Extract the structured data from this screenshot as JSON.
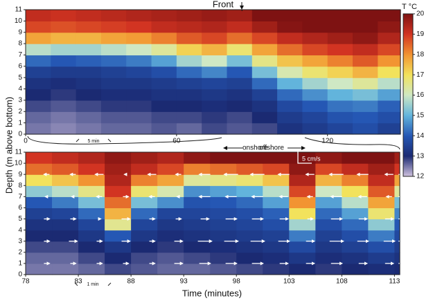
{
  "chart_data": [
    {
      "type": "heatmap",
      "annotations": [
        {
          "text": "Front",
          "x": 86
        },
        {
          "text": "5 min"
        }
      ],
      "xlim": [
        0,
        149
      ],
      "xticks": [
        0,
        60,
        120
      ],
      "ylim": [
        0,
        11
      ],
      "yticks": [
        0,
        1,
        2,
        3,
        4,
        5,
        6,
        7,
        8,
        9,
        10,
        11
      ],
      "x_edges": [
        0,
        10,
        20,
        30,
        40,
        50,
        60,
        70,
        80,
        90,
        100,
        110,
        120,
        130,
        140,
        149
      ],
      "y_edges": [
        0,
        1,
        2,
        3,
        4,
        5,
        6,
        7,
        8,
        9,
        10,
        11
      ],
      "colorbar": {
        "label": "T °C",
        "ticks": [
          12,
          13,
          14,
          15,
          16,
          17,
          18,
          19,
          20
        ],
        "colors": [
          "#d2c4e0",
          "#1b2a72",
          "#2557b4",
          "#62b4dc",
          "#cfe8c4",
          "#f2e25c",
          "#f29432",
          "#d23422",
          "#7e1212"
        ]
      },
      "z": [
        [
          12.5,
          12.4,
          12.5,
          12.6,
          12.6,
          12.7,
          12.6,
          12.8,
          12.7,
          12.8,
          13.2,
          13.4,
          13.6,
          13.8,
          13.5
        ],
        [
          12.6,
          12.5,
          12.6,
          12.7,
          12.7,
          12.8,
          12.8,
          12.9,
          12.8,
          13.0,
          13.4,
          13.6,
          13.9,
          14.0,
          13.8
        ],
        [
          12.8,
          12.7,
          12.8,
          12.9,
          12.9,
          13.0,
          13.0,
          13.1,
          13.0,
          13.2,
          13.7,
          14.0,
          14.3,
          14.4,
          14.1
        ],
        [
          13.0,
          12.9,
          13.0,
          13.1,
          13.1,
          13.2,
          13.2,
          13.3,
          13.2,
          13.5,
          14.2,
          14.6,
          15.0,
          15.2,
          14.8
        ],
        [
          13.2,
          13.1,
          13.2,
          13.3,
          13.3,
          13.4,
          13.5,
          13.6,
          13.5,
          14.2,
          15.0,
          15.6,
          16.0,
          16.4,
          15.8
        ],
        [
          13.5,
          13.4,
          13.4,
          13.5,
          13.6,
          13.8,
          14.2,
          14.5,
          14.0,
          15.2,
          16.2,
          16.8,
          17.2,
          17.6,
          17.0
        ],
        [
          14.2,
          14.0,
          14.1,
          14.2,
          14.4,
          14.8,
          15.6,
          16.0,
          15.2,
          16.6,
          17.4,
          17.8,
          18.2,
          18.6,
          18.0
        ],
        [
          15.8,
          15.6,
          15.6,
          15.8,
          16.0,
          16.4,
          17.2,
          17.6,
          16.8,
          17.8,
          18.4,
          18.8,
          19.0,
          19.2,
          18.8
        ],
        [
          17.8,
          17.6,
          17.6,
          17.8,
          17.9,
          18.2,
          18.6,
          18.8,
          18.4,
          18.8,
          19.2,
          19.4,
          19.6,
          19.8,
          19.4
        ],
        [
          18.8,
          18.7,
          18.8,
          18.9,
          19.0,
          19.2,
          19.3,
          19.4,
          19.2,
          19.6,
          19.9,
          20.0,
          20.0,
          20.1,
          19.8
        ],
        [
          19.2,
          19.1,
          19.2,
          19.3,
          19.4,
          19.5,
          19.6,
          19.7,
          19.6,
          20.0,
          20.3,
          20.4,
          20.2,
          20.5,
          20.2
        ]
      ]
    },
    {
      "type": "heatmap",
      "ylabel": "Depth (m above bottom)",
      "xlabel": "Time (minutes)",
      "annotations": [
        {
          "text": "onshore"
        },
        {
          "text": "offshore"
        },
        {
          "text": "1 min"
        }
      ],
      "scale_bar": {
        "label": "5 cm/s",
        "value": 5
      },
      "xlim": [
        78,
        113.5
      ],
      "xticks": [
        78,
        83,
        88,
        93,
        98,
        103,
        108,
        113
      ],
      "ylim": [
        0,
        11
      ],
      "yticks": [
        0,
        1,
        2,
        3,
        4,
        5,
        6,
        7,
        8,
        9,
        10,
        11
      ],
      "x_edges": [
        78,
        80.5,
        83,
        85.5,
        88,
        90.5,
        93,
        95.5,
        98,
        100.5,
        103,
        105.5,
        108,
        110.5,
        113,
        113.5
      ],
      "y_edges": [
        0,
        1,
        2,
        3,
        4,
        5,
        6,
        7,
        8,
        9,
        10,
        11
      ],
      "z": [
        [
          12.5,
          12.5,
          12.6,
          12.8,
          12.7,
          12.6,
          12.6,
          12.7,
          12.8,
          12.9,
          13.0,
          12.9,
          13.0,
          13.1,
          13.0
        ],
        [
          12.6,
          12.6,
          12.8,
          13.0,
          12.8,
          12.7,
          12.8,
          12.9,
          13.0,
          13.1,
          13.3,
          13.1,
          13.2,
          13.4,
          13.2
        ],
        [
          12.8,
          12.8,
          13.0,
          13.3,
          13.0,
          12.9,
          13.0,
          13.1,
          13.2,
          13.3,
          13.7,
          13.3,
          13.5,
          13.8,
          13.4
        ],
        [
          13.0,
          13.0,
          13.3,
          14.0,
          13.3,
          13.1,
          13.2,
          13.3,
          13.4,
          13.5,
          14.4,
          13.5,
          13.8,
          14.4,
          13.7
        ],
        [
          13.2,
          13.2,
          13.6,
          16.5,
          13.6,
          13.3,
          13.4,
          13.5,
          13.6,
          13.8,
          15.6,
          13.8,
          14.2,
          15.4,
          14.0
        ],
        [
          13.5,
          13.6,
          14.2,
          17.6,
          14.2,
          13.6,
          13.6,
          13.7,
          13.8,
          14.1,
          17.0,
          14.2,
          14.8,
          16.8,
          14.5
        ],
        [
          14.0,
          14.4,
          15.2,
          18.4,
          15.2,
          14.6,
          13.9,
          14.0,
          14.2,
          14.8,
          18.0,
          14.8,
          15.8,
          17.8,
          15.2
        ],
        [
          15.4,
          15.8,
          16.6,
          19.0,
          16.8,
          16.2,
          14.6,
          14.8,
          15.0,
          15.8,
          18.8,
          16.0,
          17.0,
          18.6,
          16.4
        ],
        [
          17.0,
          17.4,
          18.0,
          19.4,
          18.2,
          17.8,
          16.4,
          16.6,
          16.8,
          17.4,
          19.4,
          17.6,
          18.2,
          19.2,
          17.8
        ],
        [
          18.4,
          18.6,
          19.0,
          19.6,
          19.2,
          18.8,
          18.2,
          18.4,
          18.6,
          18.8,
          19.8,
          18.8,
          19.2,
          19.6,
          19.0
        ],
        [
          19.0,
          19.2,
          19.4,
          19.8,
          19.6,
          19.4,
          19.8,
          20.0,
          20.2,
          20.0,
          20.2,
          19.8,
          20.0,
          20.1,
          19.6
        ]
      ],
      "vectors": {
        "x": [
          80,
          82.5,
          85,
          87.5,
          90,
          92.5,
          95,
          97.5,
          100,
          102.5,
          105,
          107.5,
          110,
          112.5
        ],
        "depths": [
          1,
          3,
          5,
          7,
          9
        ],
        "u": [
          [
            2,
            2,
            2,
            2,
            2,
            3,
            4,
            4,
            4,
            3,
            3,
            4,
            3,
            3
          ],
          [
            2,
            3,
            2,
            3,
            2,
            3,
            5,
            5,
            5,
            4,
            3,
            5,
            4,
            4
          ],
          [
            2,
            2,
            1,
            3,
            2,
            2,
            3,
            4,
            4,
            3,
            2,
            4,
            3,
            3
          ],
          [
            -1,
            -1,
            -2,
            2,
            -2,
            -1,
            -4,
            -4,
            -4,
            -3,
            -2,
            -4,
            -3,
            -2
          ],
          [
            -2,
            -2,
            -3,
            -1,
            -3,
            -2,
            -4,
            -5,
            -5,
            -4,
            -3,
            -5,
            -4,
            -3
          ]
        ]
      }
    }
  ]
}
